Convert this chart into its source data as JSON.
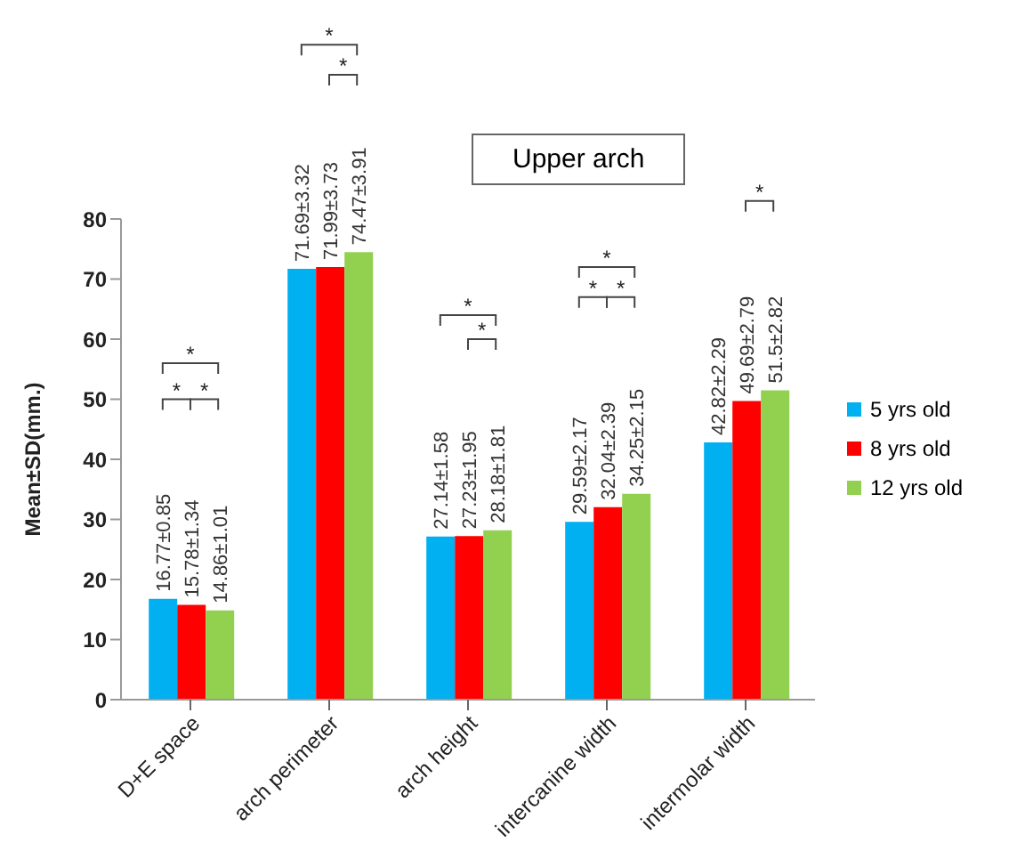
{
  "chart_data": {
    "type": "bar",
    "title": "Upper arch",
    "ylabel": "Mean±SD(mm.)",
    "categories": [
      "D+E space",
      "arch perimeter",
      "arch height",
      "intercanine width",
      "intermolar width"
    ],
    "series": [
      {
        "name": "5 yrs old",
        "color": "#00b0f0",
        "values": [
          16.77,
          71.69,
          27.14,
          29.59,
          42.82
        ],
        "value_labels": [
          "16.77±0.85",
          "71.69±3.32",
          "27.14±1.58",
          "29.59±2.17",
          "42.82±2.29"
        ]
      },
      {
        "name": "8 yrs old",
        "color": "#ff0000",
        "values": [
          15.78,
          71.99,
          27.23,
          32.04,
          49.69
        ],
        "value_labels": [
          "15.78±1.34",
          "71.99±3.73",
          "27.23±1.95",
          "32.04±2.39",
          "49.69±2.79"
        ]
      },
      {
        "name": "12 yrs old",
        "color": "#92d050",
        "values": [
          14.86,
          74.47,
          28.18,
          34.25,
          51.5
        ],
        "value_labels": [
          "14.86±1.01",
          "74.47±3.91",
          "28.18±1.81",
          "34.25±2.15",
          "51.5±2.82"
        ]
      }
    ],
    "ylim": [
      0,
      80
    ],
    "yticks": [
      0,
      10,
      20,
      30,
      40,
      50,
      60,
      70,
      80
    ],
    "grid": false,
    "legend": "right",
    "annotations": [
      "*",
      "*",
      "*",
      "*",
      "*",
      "*",
      "*",
      "*",
      "*",
      "*",
      "*"
    ]
  }
}
